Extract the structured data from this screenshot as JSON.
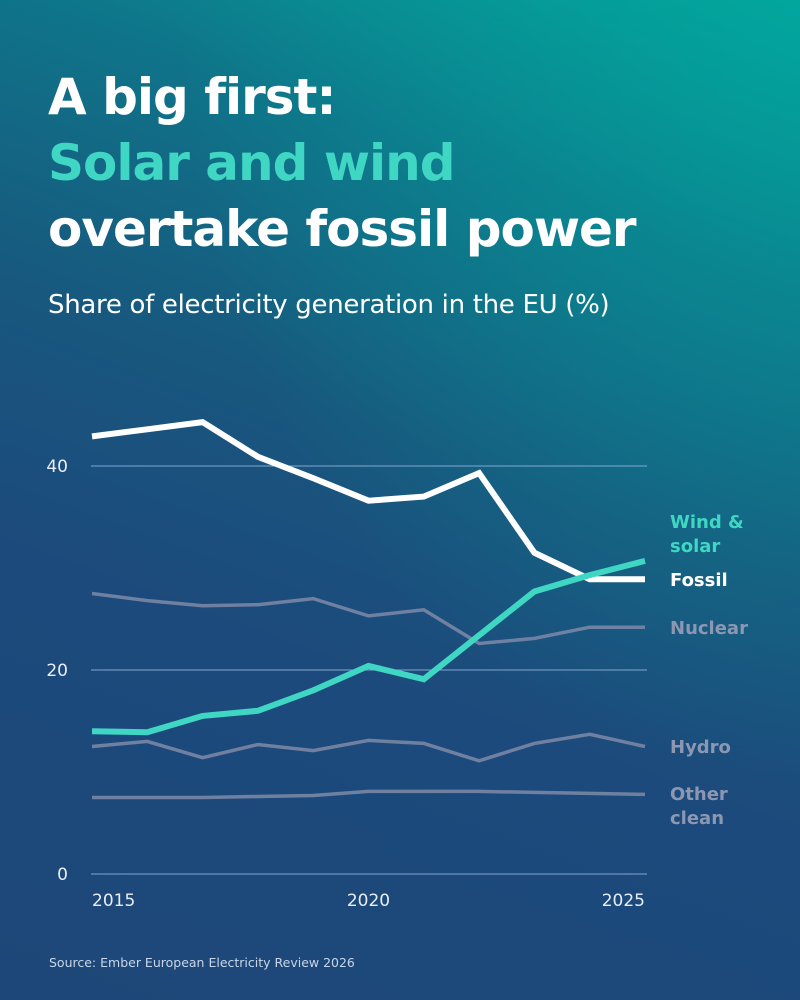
{
  "header": {
    "title_line1": "A big first:",
    "title_line2": "Solar and wind",
    "title_line3": "overtake fossil power",
    "subtitle": "Share of electricity generation in the EU (%)"
  },
  "colors": {
    "accent": "#3fd6c3",
    "fossil": "#ffffff",
    "muted_series": "#7f8aa8",
    "gridline": "#8fb0d8"
  },
  "footer": {
    "source": "Source: Ember European Electricity Review 2026"
  },
  "chart_data": {
    "type": "line",
    "title": "Share of electricity generation in the EU (%)",
    "xlabel": "",
    "ylabel": "",
    "x": [
      2015,
      2016,
      2017,
      2018,
      2019,
      2020,
      2021,
      2022,
      2023,
      2024,
      2025
    ],
    "x_ticks": [
      2015,
      2020,
      2025
    ],
    "x_tick_labels": [
      "2015",
      "2020",
      "2025"
    ],
    "y_ticks": [
      0,
      20,
      40
    ],
    "y_tick_labels": [
      "0",
      "20",
      "40"
    ],
    "ylim": [
      0,
      45
    ],
    "grid": true,
    "legend": "direct labels at line ends (right)",
    "series": [
      {
        "name": "Fossil",
        "label_lines": [
          "Fossil"
        ],
        "color": "#ffffff",
        "emphasis": true,
        "values": [
          42.9,
          43.6,
          44.3,
          40.9,
          38.8,
          36.6,
          37.0,
          39.3,
          31.5,
          28.9,
          28.9
        ]
      },
      {
        "name": "Wind & solar",
        "label_lines": [
          "Wind &",
          "solar"
        ],
        "color": "#3fd6c3",
        "emphasis": true,
        "values": [
          14.0,
          13.9,
          15.5,
          16.0,
          18.0,
          20.4,
          19.1,
          23.4,
          27.7,
          29.3,
          30.7
        ]
      },
      {
        "name": "Nuclear",
        "label_lines": [
          "Nuclear"
        ],
        "color": "#7f8aa8",
        "emphasis": false,
        "values": [
          27.5,
          26.8,
          26.3,
          26.4,
          27.0,
          25.3,
          25.9,
          22.6,
          23.1,
          24.2,
          24.2
        ]
      },
      {
        "name": "Hydro",
        "label_lines": [
          "Hydro"
        ],
        "color": "#7f8aa8",
        "emphasis": false,
        "values": [
          12.5,
          13.0,
          11.4,
          12.7,
          12.1,
          13.1,
          12.8,
          11.1,
          12.8,
          13.7,
          12.5
        ]
      },
      {
        "name": "Other clean",
        "label_lines": [
          "Other",
          "clean"
        ],
        "color": "#7f8aa8",
        "emphasis": false,
        "values": [
          7.5,
          7.5,
          7.5,
          7.6,
          7.7,
          8.1,
          8.1,
          8.1,
          8.0,
          7.9,
          7.8
        ]
      }
    ]
  }
}
